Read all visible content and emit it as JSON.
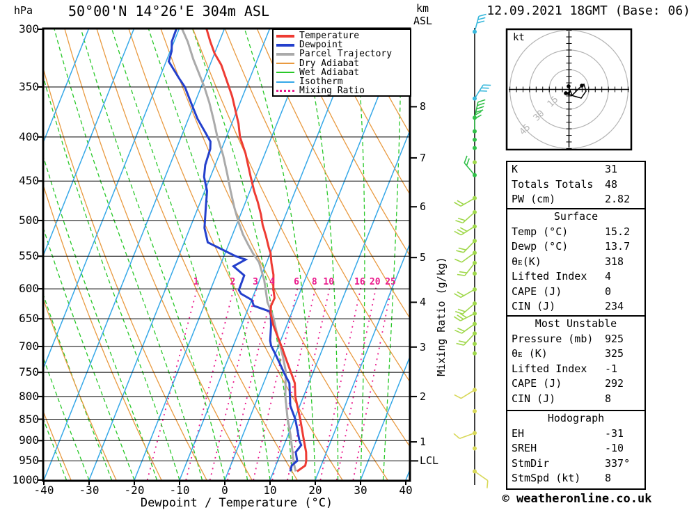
{
  "header": {
    "pressure_unit": "hPa",
    "title": "50°00'N 14°26'E 304m ASL",
    "altitude_unit_line1": "km",
    "altitude_unit_line2": "ASL",
    "datetime": "12.09.2021 18GMT (Base: 06)"
  },
  "axes": {
    "xlabel": "Dewpoint / Temperature (°C)",
    "x_ticks": [
      -40,
      -30,
      -20,
      -10,
      0,
      10,
      20,
      30,
      40
    ],
    "pressure_ticks": [
      300,
      350,
      400,
      450,
      500,
      550,
      600,
      650,
      700,
      750,
      800,
      850,
      900,
      950,
      1000
    ],
    "km_ticks": [
      8,
      7,
      6,
      5,
      4,
      3,
      2,
      1
    ],
    "lcl_label": "LCL",
    "mixing_ratio_axis_label": "Mixing Ratio (g/kg)"
  },
  "legend": [
    {
      "label": "Temperature",
      "color": "#ee3b33",
      "style": "thick"
    },
    {
      "label": "Dewpoint",
      "color": "#2440cc",
      "style": "thick"
    },
    {
      "label": "Parcel Trajectory",
      "color": "#aaaaaa",
      "style": "thick"
    },
    {
      "label": "Dry Adiabat",
      "color": "#e99a40",
      "style": "thin"
    },
    {
      "label": "Wet Adiabat",
      "color": "#28c828",
      "style": "thin"
    },
    {
      "label": "Isotherm",
      "color": "#35a8e8",
      "style": "thin"
    },
    {
      "label": "Mixing Ratio",
      "color": "#ea1a8c",
      "style": "dotted"
    }
  ],
  "hodograph": {
    "unit_label": "kt",
    "rings_kt": [
      15,
      30,
      45
    ]
  },
  "tables": [
    {
      "header": "",
      "rows": [
        [
          "K",
          "31"
        ],
        [
          "Totals Totals",
          "48"
        ],
        [
          "PW (cm)",
          "2.82"
        ]
      ]
    },
    {
      "header": "Surface",
      "rows": [
        [
          "Temp (°C)",
          "15.2"
        ],
        [
          "Dewp (°C)",
          "13.7"
        ],
        [
          "θᴇ(K)",
          "318"
        ],
        [
          "Lifted Index",
          "4"
        ],
        [
          "CAPE (J)",
          "0"
        ],
        [
          "CIN (J)",
          "234"
        ]
      ]
    },
    {
      "header": "Most Unstable",
      "rows": [
        [
          "Pressure (mb)",
          "925"
        ],
        [
          "θᴇ (K)",
          "325"
        ],
        [
          "Lifted Index",
          "-1"
        ],
        [
          "CAPE (J)",
          "292"
        ],
        [
          "CIN (J)",
          "8"
        ]
      ]
    },
    {
      "header": "Hodograph",
      "rows": [
        [
          "EH",
          "-31"
        ],
        [
          "SREH",
          "-10"
        ],
        [
          "StmDir",
          "337°"
        ],
        [
          "StmSpd (kt)",
          "8"
        ]
      ]
    }
  ],
  "copyright": "© weatheronline.co.uk",
  "colors": {
    "temperature": "#ee3b33",
    "dewpoint": "#2440cc",
    "parcel": "#aaaaaa",
    "dry_adiabat": "#e99a40",
    "wet_adiabat": "#28c828",
    "isotherm": "#35a8e8",
    "mixing_ratio": "#ea1a8c",
    "grid": "#000000",
    "ring_gray": "#b4b4b4",
    "barb_cyan": "#38b8dc",
    "barb_green": "#30c048",
    "barb_lime": "#a0d84c",
    "barb_yellow": "#d8d858"
  },
  "chart_data": {
    "type": "skewt-logp",
    "pressure_range": [
      300,
      1000
    ],
    "temp_axis_range_c": [
      -40,
      40
    ],
    "isotherm_step_c": 10,
    "dry_adiabat_step_c": 10,
    "wet_adiabat_step_c": 5,
    "mixing_ratio_lines_gkg": [
      1,
      2,
      3,
      4,
      6,
      8,
      10,
      16,
      20,
      25
    ],
    "km_tick_pressures": {
      "8": 369,
      "7": 423,
      "6": 482,
      "5": 552,
      "4": 622,
      "3": 701,
      "2": 800,
      "1": 903
    },
    "lcl_pressure": 950,
    "series": {
      "temperature": [
        [
          300,
          -43.9
        ],
        [
          310,
          -42.0
        ],
        [
          320,
          -40.0
        ],
        [
          330,
          -37.5
        ],
        [
          343,
          -35.1
        ],
        [
          359,
          -32.3
        ],
        [
          386,
          -28.5
        ],
        [
          400,
          -27.0
        ],
        [
          418,
          -24.3
        ],
        [
          445,
          -21.1
        ],
        [
          462,
          -19.1
        ],
        [
          476,
          -17.3
        ],
        [
          492,
          -15.5
        ],
        [
          506,
          -14.2
        ],
        [
          521,
          -12.5
        ],
        [
          538,
          -10.8
        ],
        [
          545,
          -10.0
        ],
        [
          560,
          -8.9
        ],
        [
          578,
          -7.4
        ],
        [
          600,
          -6.2
        ],
        [
          615,
          -5.1
        ],
        [
          628,
          -5.2
        ],
        [
          641,
          -4.6
        ],
        [
          661,
          -3.0
        ],
        [
          687,
          -0.5
        ],
        [
          704,
          1.1
        ],
        [
          728,
          3.2
        ],
        [
          749,
          5.0
        ],
        [
          772,
          6.9
        ],
        [
          800,
          8.2
        ],
        [
          850,
          11.3
        ],
        [
          900,
          14.0
        ],
        [
          928,
          15.5
        ],
        [
          950,
          16.3
        ],
        [
          962,
          16.5
        ],
        [
          977,
          15.2
        ]
      ],
      "dewpoint": [
        [
          300,
          -50.6
        ],
        [
          310,
          -50.5
        ],
        [
          318,
          -49.7
        ],
        [
          327,
          -49.4
        ],
        [
          343,
          -45.4
        ],
        [
          350,
          -43.6
        ],
        [
          367,
          -40.5
        ],
        [
          381,
          -38.0
        ],
        [
          396,
          -34.9
        ],
        [
          405,
          -33.1
        ],
        [
          413,
          -32.5
        ],
        [
          431,
          -32.2
        ],
        [
          445,
          -31.4
        ],
        [
          462,
          -29.5
        ],
        [
          483,
          -28.3
        ],
        [
          510,
          -26.8
        ],
        [
          530,
          -24.8
        ],
        [
          550,
          -17.4
        ],
        [
          555,
          -14.9
        ],
        [
          565,
          -17.0
        ],
        [
          579,
          -13.8
        ],
        [
          602,
          -13.7
        ],
        [
          608,
          -12.9
        ],
        [
          618,
          -10.0
        ],
        [
          628,
          -9.0
        ],
        [
          637,
          -5.1
        ],
        [
          644,
          -4.4
        ],
        [
          663,
          -3.4
        ],
        [
          689,
          -2.3
        ],
        [
          698,
          -1.7
        ],
        [
          716,
          0.2
        ],
        [
          734,
          2.0
        ],
        [
          753,
          3.8
        ],
        [
          772,
          5.7
        ],
        [
          820,
          7.9
        ],
        [
          850,
          10.2
        ],
        [
          878,
          11.8
        ],
        [
          900,
          13.0
        ],
        [
          911,
          13.8
        ],
        [
          928,
          13.2
        ],
        [
          950,
          14.3
        ],
        [
          962,
          13.5
        ],
        [
          977,
          13.7
        ]
      ],
      "parcel": [
        [
          300,
          -49.3
        ],
        [
          310,
          -47.0
        ],
        [
          325,
          -44.2
        ],
        [
          337,
          -41.8
        ],
        [
          350,
          -39.3
        ],
        [
          365,
          -36.8
        ],
        [
          381,
          -34.5
        ],
        [
          400,
          -32.0
        ],
        [
          420,
          -29.1
        ],
        [
          441,
          -26.6
        ],
        [
          462,
          -24.3
        ],
        [
          483,
          -22.0
        ],
        [
          502,
          -19.8
        ],
        [
          519,
          -17.7
        ],
        [
          533,
          -15.7
        ],
        [
          546,
          -13.8
        ],
        [
          559,
          -11.7
        ],
        [
          586,
          -9.0
        ],
        [
          622,
          -6.3
        ],
        [
          646,
          -3.8
        ],
        [
          687,
          -0.6
        ],
        [
          716,
          1.7
        ],
        [
          747,
          3.8
        ],
        [
          800,
          6.0
        ],
        [
          846,
          8.3
        ],
        [
          886,
          10.5
        ],
        [
          928,
          12.5
        ],
        [
          955,
          13.7
        ],
        [
          977,
          14.9
        ]
      ]
    },
    "wind_barbs": [
      {
        "p": 302,
        "color": "barb_cyan",
        "angle": 75,
        "feathers": 3
      },
      {
        "p": 361,
        "color": "barb_cyan",
        "angle": 58,
        "feathers": 3
      },
      {
        "p": 380,
        "color": "barb_green",
        "angle": 78,
        "feathers": 4
      },
      {
        "p": 394,
        "color": "barb_green",
        "angle": 90,
        "feathers": 2
      },
      {
        "p": 403,
        "color": "barb_green",
        "angle": 0,
        "feathers": 0
      },
      {
        "p": 412,
        "color": "barb_green",
        "angle": 0,
        "feathers": 0
      },
      {
        "p": 428,
        "color": "barb_lime",
        "angle": 0,
        "feathers": 0
      },
      {
        "p": 443,
        "color": "barb_green",
        "angle": 130,
        "feathers": 2
      },
      {
        "p": 471,
        "color": "barb_lime",
        "angle": 210,
        "feathers": 2
      },
      {
        "p": 489,
        "color": "barb_lime",
        "angle": 222,
        "feathers": 2
      },
      {
        "p": 508,
        "color": "barb_lime",
        "angle": 212,
        "feathers": 3
      },
      {
        "p": 528,
        "color": "barb_lime",
        "angle": 226,
        "feathers": 2
      },
      {
        "p": 545,
        "color": "barb_lime",
        "angle": 216,
        "feathers": 1
      },
      {
        "p": 560,
        "color": "barb_lime",
        "angle": 232,
        "feathers": 2
      },
      {
        "p": 576,
        "color": "barb_lime",
        "angle": 0,
        "feathers": 0
      },
      {
        "p": 601,
        "color": "barb_lime",
        "angle": 210,
        "feathers": 2
      },
      {
        "p": 624,
        "color": "barb_lime",
        "angle": 221,
        "feathers": 2
      },
      {
        "p": 641,
        "color": "barb_lime",
        "angle": 207,
        "feathers": 3
      },
      {
        "p": 659,
        "color": "barb_lime",
        "angle": 216,
        "feathers": 2
      },
      {
        "p": 676,
        "color": "barb_lime",
        "angle": 227,
        "feathers": 2
      },
      {
        "p": 695,
        "color": "barb_lime",
        "angle": 0,
        "feathers": 0
      },
      {
        "p": 713,
        "color": "barb_lime",
        "angle": 0,
        "feathers": 0
      },
      {
        "p": 786,
        "color": "barb_yellow",
        "angle": 212,
        "feathers": 1
      },
      {
        "p": 832,
        "color": "barb_yellow",
        "angle": 0,
        "feathers": 0
      },
      {
        "p": 882,
        "color": "barb_yellow",
        "angle": 200,
        "feathers": 1
      },
      {
        "p": 919,
        "color": "barb_yellow",
        "angle": 0,
        "feathers": 0
      },
      {
        "p": 977,
        "color": "barb_yellow",
        "angle": 325,
        "feathers": 1
      }
    ],
    "hodograph_trace_kt": [
      [
        -0.3,
        2.4
      ],
      [
        2.4,
        -4.5
      ],
      [
        6.1,
        -0.8
      ],
      [
        9.8,
        2.9
      ],
      [
        11.4,
        4.0
      ],
      [
        13.0,
        -1.3
      ],
      [
        9.3,
        -6.6
      ],
      [
        3.4,
        -5.0
      ],
      [
        -2.4,
        -2.9
      ]
    ],
    "hodograph_dots_kt": [
      [
        -0.3,
        2.4
      ],
      [
        9.8,
        2.9
      ],
      [
        -2.4,
        -2.9
      ]
    ]
  }
}
